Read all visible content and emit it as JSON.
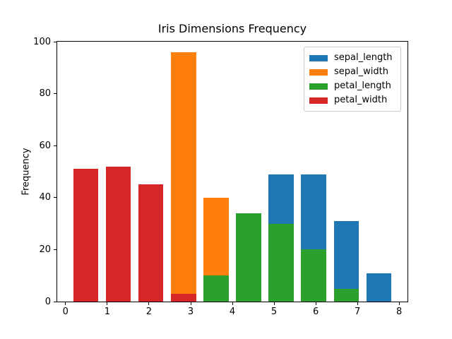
{
  "figure": {
    "title": "Iris Dimensions Frequency",
    "ylabel": "Frequency",
    "background": "#ffffff",
    "spine_color": "#000000",
    "legend_border_color": "#cccccc"
  },
  "chart_data": {
    "type": "bar",
    "subtype": "overlaid-histogram",
    "title": "Iris Dimensions Frequency",
    "xlabel": "",
    "ylabel": "Frequency",
    "xlim": [
      -0.2,
      8.2
    ],
    "ylim": [
      0,
      100
    ],
    "x_ticks": [
      0,
      1,
      2,
      3,
      4,
      5,
      6,
      7,
      8
    ],
    "y_ticks": [
      0,
      20,
      40,
      60,
      80,
      100
    ],
    "grid": false,
    "legend_position": "upper right",
    "bin_centers": [
      0.49,
      1.27,
      2.05,
      2.83,
      3.61,
      4.39,
      5.17,
      5.95,
      6.73,
      7.51
    ],
    "bar_width": 0.6,
    "series": [
      {
        "name": "sepal_length",
        "color": "#1f77b4",
        "values": [
          0,
          0,
          0,
          0,
          0,
          0,
          49,
          49,
          31,
          11
        ]
      },
      {
        "name": "sepal_width",
        "color": "#ff7f0e",
        "values": [
          0,
          0,
          0,
          96,
          40,
          0,
          0,
          0,
          0,
          0
        ]
      },
      {
        "name": "petal_length",
        "color": "#2ca02c",
        "values": [
          0,
          0,
          0,
          0,
          10,
          34,
          30,
          20,
          5,
          0
        ]
      },
      {
        "name": "petal_width",
        "color": "#d62728",
        "values": [
          51,
          52,
          45,
          3,
          0,
          0,
          0,
          0,
          0,
          0
        ]
      }
    ]
  }
}
